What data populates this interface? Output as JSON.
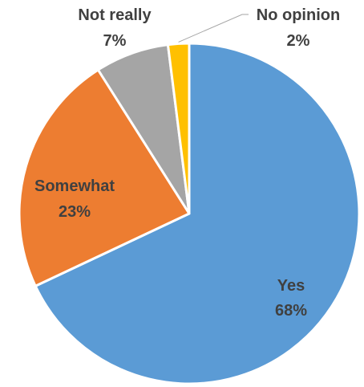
{
  "chart_data": {
    "type": "pie",
    "title": "",
    "categories": [
      "Yes",
      "Somewhat",
      "Not really",
      "No opinion"
    ],
    "values": [
      68,
      23,
      7,
      2
    ],
    "value_labels": [
      "68%",
      "23%",
      "7%",
      "2%"
    ],
    "colors": [
      "#5b9bd5",
      "#ed7d31",
      "#a5a5a5",
      "#ffc000"
    ],
    "start_angle_deg": 0,
    "direction": "clockwise",
    "legend": "none",
    "label_color": "#404040"
  }
}
